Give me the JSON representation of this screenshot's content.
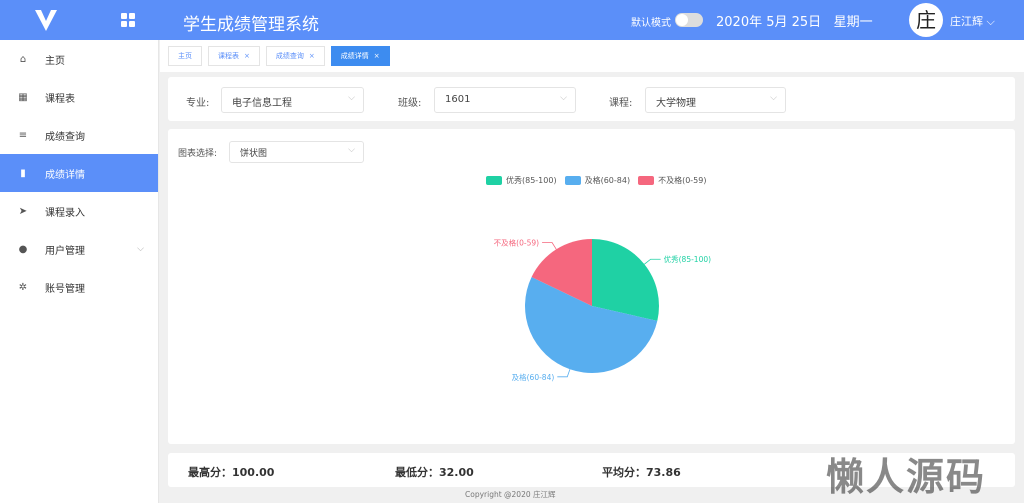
{
  "header": {
    "title": "学生成绩管理系统",
    "mode_label": "默认模式",
    "date": "2020年 5月 25日",
    "weekday": "星期一",
    "avatar_char": "庄",
    "user": "庄江辉"
  },
  "sidebar": {
    "items": [
      {
        "label": "主页",
        "icon": "home-icon"
      },
      {
        "label": "课程表",
        "icon": "grid-icon"
      },
      {
        "label": "成绩查询",
        "icon": "list-icon"
      },
      {
        "label": "成绩详情",
        "icon": "bar-chart-icon",
        "active": true
      },
      {
        "label": "课程录入",
        "icon": "send-icon"
      },
      {
        "label": "用户管理",
        "icon": "user-icon"
      },
      {
        "label": "账号管理",
        "icon": "gear-icon"
      }
    ]
  },
  "tabs": [
    {
      "label": "主页"
    },
    {
      "label": "课程表"
    },
    {
      "label": "成绩查询"
    },
    {
      "label": "成绩详情",
      "active": true
    }
  ],
  "filters": {
    "major_label": "专业:",
    "major": "电子信息工程",
    "class_label": "班级:",
    "class": "1601",
    "course_label": "课程:",
    "course": "大学物理"
  },
  "chart_select": {
    "label": "图表选择:",
    "value": "饼状图"
  },
  "chart_data": {
    "type": "pie",
    "legend_position": "top",
    "categories": [
      "优秀(85-100)",
      "及格(60-84)",
      "不及格(0-59)"
    ],
    "values": [
      28.6,
      53.6,
      17.9
    ],
    "colors": [
      "#1fd1a4",
      "#58aeef",
      "#f5677e"
    ]
  },
  "stats": {
    "max": "最高分：100.00",
    "min": "最低分：32.00",
    "avg": "平均分：73.86"
  },
  "footer": "Copyright @2020 庄江辉",
  "watermark": "懒人源码"
}
